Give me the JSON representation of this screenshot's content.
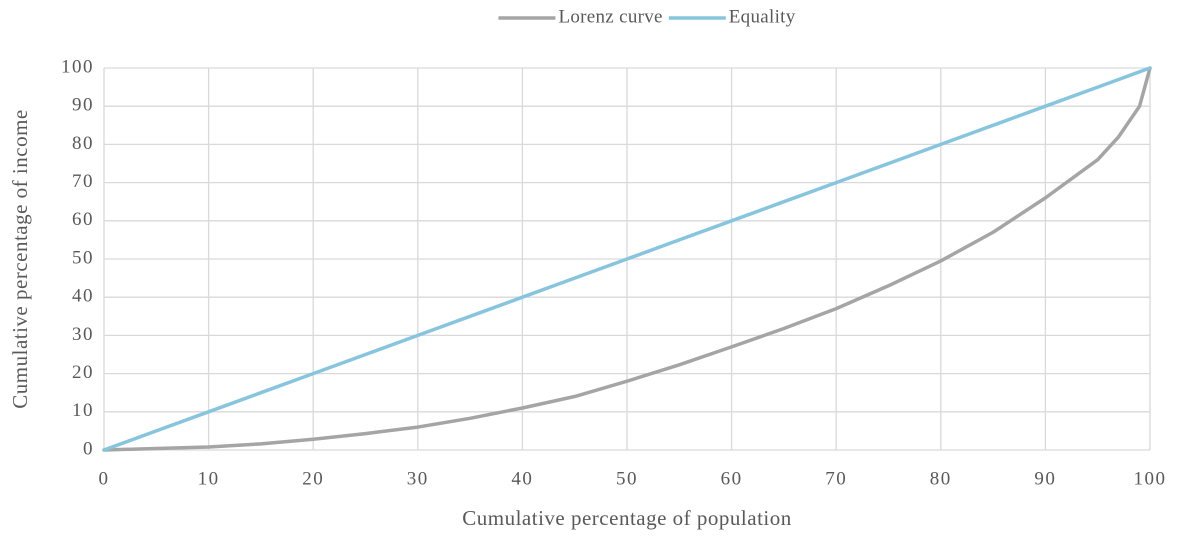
{
  "chart_data": {
    "type": "line",
    "x_label": "Cumulative percentage of population",
    "y_label": "Cumulative percentage of income",
    "x": [
      0,
      5,
      10,
      15,
      20,
      25,
      30,
      35,
      40,
      45,
      50,
      55,
      60,
      65,
      70,
      75,
      80,
      85,
      90,
      95,
      97,
      99,
      100
    ],
    "series": [
      {
        "name": "Lorenz curve",
        "color": "#a5a5a5",
        "values": [
          0,
          0.4,
          0.8,
          1.6,
          2.8,
          4.3,
          6,
          8.3,
          11,
          14,
          18,
          22.3,
          27,
          31.8,
          37,
          43,
          49.5,
          57,
          66,
          76,
          82,
          90,
          100
        ]
      },
      {
        "name": "Equality",
        "color": "#87c5df",
        "values": [
          0,
          5,
          10,
          15,
          20,
          25,
          30,
          35,
          40,
          45,
          50,
          55,
          60,
          65,
          70,
          75,
          80,
          85,
          90,
          95,
          97,
          99,
          100
        ]
      }
    ],
    "xlim": [
      0,
      100
    ],
    "xticks": [
      0,
      10,
      20,
      30,
      40,
      50,
      60,
      70,
      80,
      90,
      100
    ],
    "ylim": [
      0,
      100
    ],
    "yticks": [
      0,
      10,
      20,
      30,
      40,
      50,
      60,
      70,
      80,
      90,
      100
    ],
    "grid": true,
    "legend": "top"
  }
}
